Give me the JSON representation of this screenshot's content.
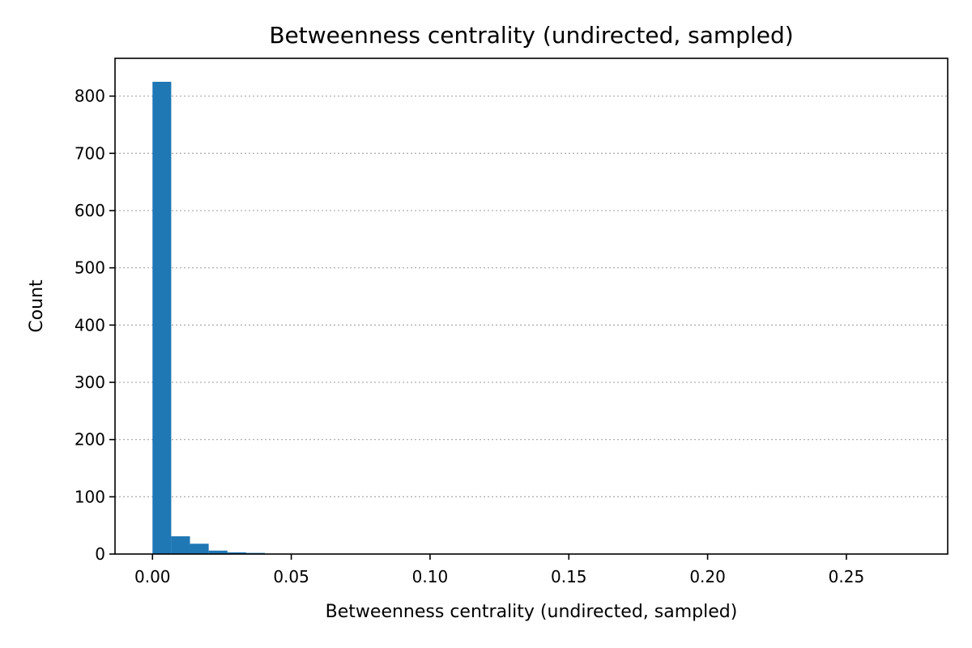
{
  "chart_data": {
    "type": "bar",
    "title": "Betweenness centrality (undirected, sampled)",
    "xlabel": "Betweenness centrality (undirected, sampled)",
    "ylabel": "Count",
    "xlim": [
      -0.0135,
      0.2865
    ],
    "ylim": [
      0,
      866
    ],
    "grid": {
      "y": true,
      "x": false
    },
    "bar_color": "#1f77b4",
    "bin_width": 0.00675,
    "x_ticks": [
      0.0,
      0.05,
      0.1,
      0.15,
      0.2,
      0.25
    ],
    "x_tick_labels": [
      "0.00",
      "0.05",
      "0.10",
      "0.15",
      "0.20",
      "0.25"
    ],
    "y_ticks": [
      0,
      100,
      200,
      300,
      400,
      500,
      600,
      700,
      800
    ],
    "y_tick_labels": [
      "0",
      "100",
      "200",
      "300",
      "400",
      "500",
      "600",
      "700",
      "800"
    ],
    "bins": [
      0.0,
      0.00675,
      0.0135,
      0.02025,
      0.027,
      0.03375
    ],
    "values": [
      825,
      31,
      18,
      6,
      3,
      2
    ]
  }
}
